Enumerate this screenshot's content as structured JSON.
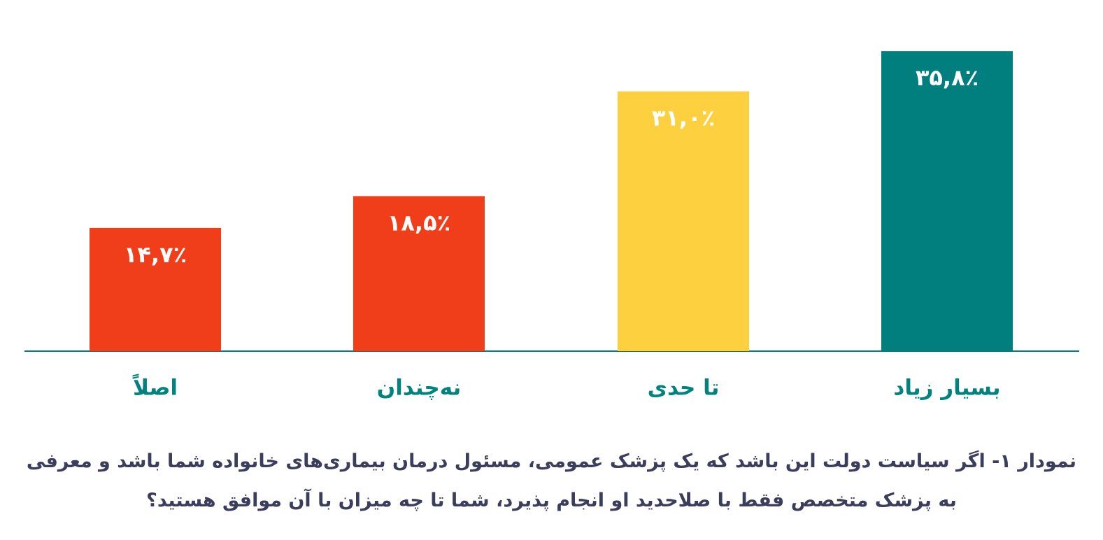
{
  "chart_data": {
    "type": "bar",
    "title": "نمودار ۱- اگر سیاست دولت این باشد که یک پزشک عمومی، مسئول درمان بیماری‌های خانواده شما باشد و معرفی به پزشک متخصص فقط با صلاحدید او انجام پذیرد، شما تا چه میزان با آن موافق هستید؟",
    "categories": [
      "اصلاً",
      "نه‌چندان",
      "تا حدی",
      "بسیار زیاد"
    ],
    "values": [
      14.7,
      18.5,
      31.0,
      35.8
    ],
    "value_labels": [
      "۱۴,۷٪",
      "۱۸,۵٪",
      "۳۱,۰٪",
      "۳۵,۸٪"
    ],
    "colors": [
      "#f03e1a",
      "#f03e1a",
      "#fdd03f",
      "#007f7e"
    ]
  }
}
